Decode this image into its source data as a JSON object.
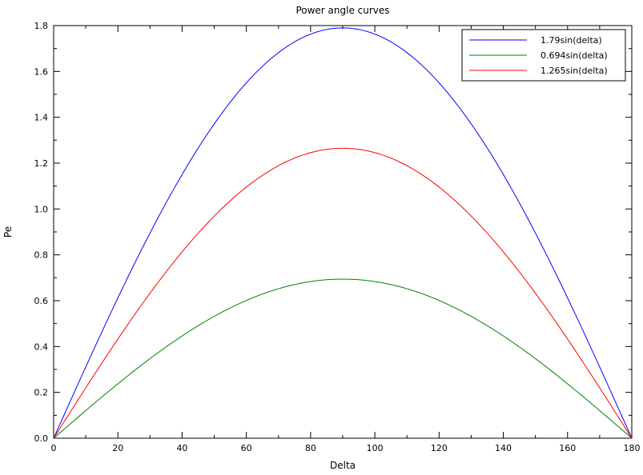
{
  "chart_data": {
    "type": "line",
    "title": "Power angle curves",
    "xlabel": "Delta",
    "ylabel": "Pe",
    "xlim": [
      0,
      180
    ],
    "ylim": [
      0,
      1.8
    ],
    "x_ticks": [
      "0",
      "20",
      "40",
      "60",
      "80",
      "100",
      "120",
      "140",
      "160",
      "180"
    ],
    "y_ticks": [
      "0.0",
      "0.2",
      "0.4",
      "0.6",
      "0.8",
      "1.0",
      "1.2",
      "1.4",
      "1.6",
      "1.8"
    ],
    "grid": false,
    "legend_position": "top-right",
    "series": [
      {
        "name": "1.79sin(delta)",
        "color": "#0000ff",
        "amplitude": 1.79,
        "x": [
          0,
          10,
          20,
          30,
          40,
          50,
          60,
          70,
          80,
          90,
          100,
          110,
          120,
          130,
          140,
          150,
          160,
          170,
          180
        ],
        "values": [
          0,
          0.311,
          0.612,
          0.895,
          1.151,
          1.371,
          1.55,
          1.682,
          1.763,
          1.79,
          1.763,
          1.682,
          1.55,
          1.371,
          1.151,
          0.895,
          0.612,
          0.311,
          0
        ]
      },
      {
        "name": "0.694sin(delta)",
        "color": "#008000",
        "amplitude": 0.694,
        "x": [
          0,
          10,
          20,
          30,
          40,
          50,
          60,
          70,
          80,
          90,
          100,
          110,
          120,
          130,
          140,
          150,
          160,
          170,
          180
        ],
        "values": [
          0,
          0.121,
          0.237,
          0.347,
          0.446,
          0.532,
          0.601,
          0.652,
          0.683,
          0.694,
          0.683,
          0.652,
          0.601,
          0.532,
          0.446,
          0.347,
          0.237,
          0.121,
          0
        ]
      },
      {
        "name": "1.265sin(delta)",
        "color": "#ff0000",
        "amplitude": 1.265,
        "x": [
          0,
          10,
          20,
          30,
          40,
          50,
          60,
          70,
          80,
          90,
          100,
          110,
          120,
          130,
          140,
          150,
          160,
          170,
          180
        ],
        "values": [
          0,
          0.22,
          0.433,
          0.633,
          0.813,
          0.969,
          1.096,
          1.189,
          1.246,
          1.265,
          1.246,
          1.189,
          1.096,
          0.969,
          0.813,
          0.633,
          0.433,
          0.22,
          0
        ]
      }
    ]
  }
}
